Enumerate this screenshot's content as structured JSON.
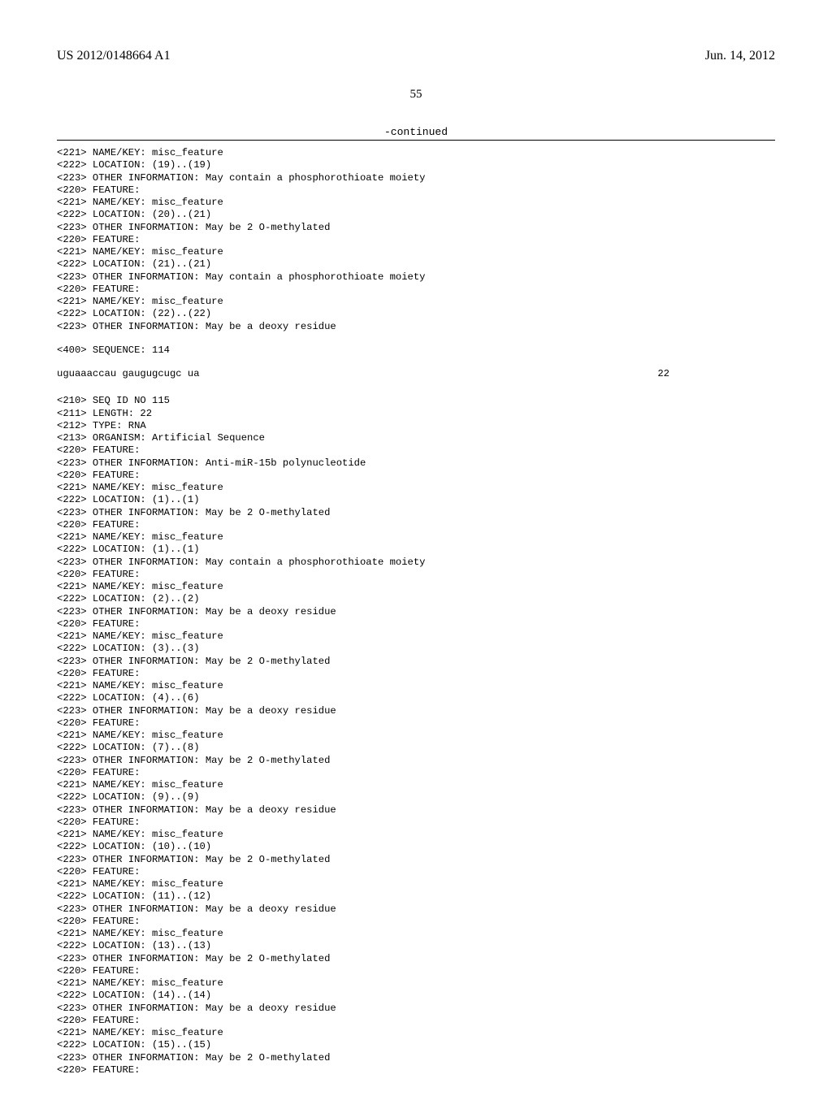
{
  "header": {
    "publication_id": "US 2012/0148664 A1",
    "publication_date": "Jun. 14, 2012",
    "page_number": "55",
    "continued_label": "-continued"
  },
  "block1_lines": [
    "<221> NAME/KEY: misc_feature",
    "<222> LOCATION: (19)..(19)",
    "<223> OTHER INFORMATION: May contain a phosphorothioate moiety",
    "<220> FEATURE:",
    "<221> NAME/KEY: misc_feature",
    "<222> LOCATION: (20)..(21)",
    "<223> OTHER INFORMATION: May be 2 O-methylated",
    "<220> FEATURE:",
    "<221> NAME/KEY: misc_feature",
    "<222> LOCATION: (21)..(21)",
    "<223> OTHER INFORMATION: May contain a phosphorothioate moiety",
    "<220> FEATURE:",
    "<221> NAME/KEY: misc_feature",
    "<222> LOCATION: (22)..(22)",
    "<223> OTHER INFORMATION: May be a deoxy residue"
  ],
  "seq114_label": "<400> SEQUENCE: 114",
  "seq114": {
    "sequence": "uguaaaccau gaugugcugc ua",
    "length": "22"
  },
  "block2_lines": [
    "<210> SEQ ID NO 115",
    "<211> LENGTH: 22",
    "<212> TYPE: RNA",
    "<213> ORGANISM: Artificial Sequence",
    "<220> FEATURE:",
    "<223> OTHER INFORMATION: Anti-miR-15b polynucleotide",
    "<220> FEATURE:",
    "<221> NAME/KEY: misc_feature",
    "<222> LOCATION: (1)..(1)",
    "<223> OTHER INFORMATION: May be 2 O-methylated",
    "<220> FEATURE:",
    "<221> NAME/KEY: misc_feature",
    "<222> LOCATION: (1)..(1)",
    "<223> OTHER INFORMATION: May contain a phosphorothioate moiety",
    "<220> FEATURE:",
    "<221> NAME/KEY: misc_feature",
    "<222> LOCATION: (2)..(2)",
    "<223> OTHER INFORMATION: May be a deoxy residue",
    "<220> FEATURE:",
    "<221> NAME/KEY: misc_feature",
    "<222> LOCATION: (3)..(3)",
    "<223> OTHER INFORMATION: May be 2 O-methylated",
    "<220> FEATURE:",
    "<221> NAME/KEY: misc_feature",
    "<222> LOCATION: (4)..(6)",
    "<223> OTHER INFORMATION: May be a deoxy residue",
    "<220> FEATURE:",
    "<221> NAME/KEY: misc_feature",
    "<222> LOCATION: (7)..(8)",
    "<223> OTHER INFORMATION: May be 2 O-methylated",
    "<220> FEATURE:",
    "<221> NAME/KEY: misc_feature",
    "<222> LOCATION: (9)..(9)",
    "<223> OTHER INFORMATION: May be a deoxy residue",
    "<220> FEATURE:",
    "<221> NAME/KEY: misc_feature",
    "<222> LOCATION: (10)..(10)",
    "<223> OTHER INFORMATION: May be 2 O-methylated",
    "<220> FEATURE:",
    "<221> NAME/KEY: misc_feature",
    "<222> LOCATION: (11)..(12)",
    "<223> OTHER INFORMATION: May be a deoxy residue",
    "<220> FEATURE:",
    "<221> NAME/KEY: misc_feature",
    "<222> LOCATION: (13)..(13)",
    "<223> OTHER INFORMATION: May be 2 O-methylated",
    "<220> FEATURE:",
    "<221> NAME/KEY: misc_feature",
    "<222> LOCATION: (14)..(14)",
    "<223> OTHER INFORMATION: May be a deoxy residue",
    "<220> FEATURE:",
    "<221> NAME/KEY: misc_feature",
    "<222> LOCATION: (15)..(15)",
    "<223> OTHER INFORMATION: May be 2 O-methylated",
    "<220> FEATURE:"
  ]
}
